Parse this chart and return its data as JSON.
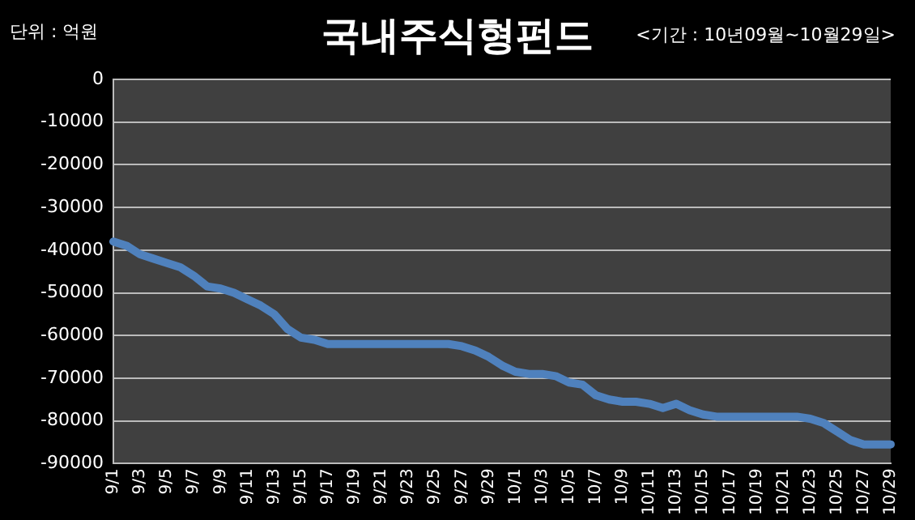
{
  "chart_data": {
    "type": "line",
    "title": "국내주식형펀드",
    "subtitle": "<기간 : 10년09월~10월29일>",
    "ylabel": "단위 : 억원",
    "categories": [
      "9/1",
      null,
      "9/3",
      null,
      "9/5",
      null,
      "9/7",
      null,
      "9/9",
      null,
      "9/11",
      null,
      "9/13",
      null,
      "9/15",
      null,
      "9/17",
      null,
      "9/19",
      null,
      "9/21",
      null,
      "9/23",
      null,
      "9/25",
      null,
      "9/27",
      null,
      "9/29",
      null,
      "10/1",
      null,
      "10/3",
      null,
      "10/5",
      null,
      "10/7",
      null,
      "10/9",
      null,
      "10/11",
      null,
      "10/13",
      null,
      "10/15",
      null,
      "10/17",
      null,
      "10/19",
      null,
      "10/21",
      null,
      "10/23",
      null,
      "10/25",
      null,
      "10/27",
      null,
      "10/29"
    ],
    "series": [
      {
        "color": "#4f81bd",
        "values": [
          -38000,
          -39000,
          -41000,
          -42000,
          -43000,
          -44000,
          -46000,
          -48500,
          -49000,
          -50000,
          -51500,
          -53000,
          -55000,
          -58500,
          -60500,
          -61000,
          -62000,
          -62000,
          -62000,
          -62000,
          -62000,
          -62000,
          -62000,
          -62000,
          -62000,
          -62000,
          -62500,
          -63500,
          -65000,
          -67000,
          -68500,
          -69000,
          -69000,
          -69500,
          -71000,
          -71500,
          -74000,
          -75000,
          -75500,
          -75500,
          -76000,
          -77000,
          -76000,
          -77500,
          -78500,
          -79000,
          -79000,
          -79000,
          -79000,
          -79000,
          -79000,
          -79000,
          -79500,
          -80500,
          -82500,
          -84500,
          -85500,
          -85500,
          -85500
        ]
      }
    ],
    "ylim": [
      -90000,
      0
    ],
    "yticks": [
      0,
      -10000,
      -20000,
      -30000,
      -40000,
      -50000,
      -60000,
      -70000,
      -80000,
      -90000
    ],
    "grid": "y",
    "legend": false,
    "marker": "none",
    "line_style": "solid"
  }
}
